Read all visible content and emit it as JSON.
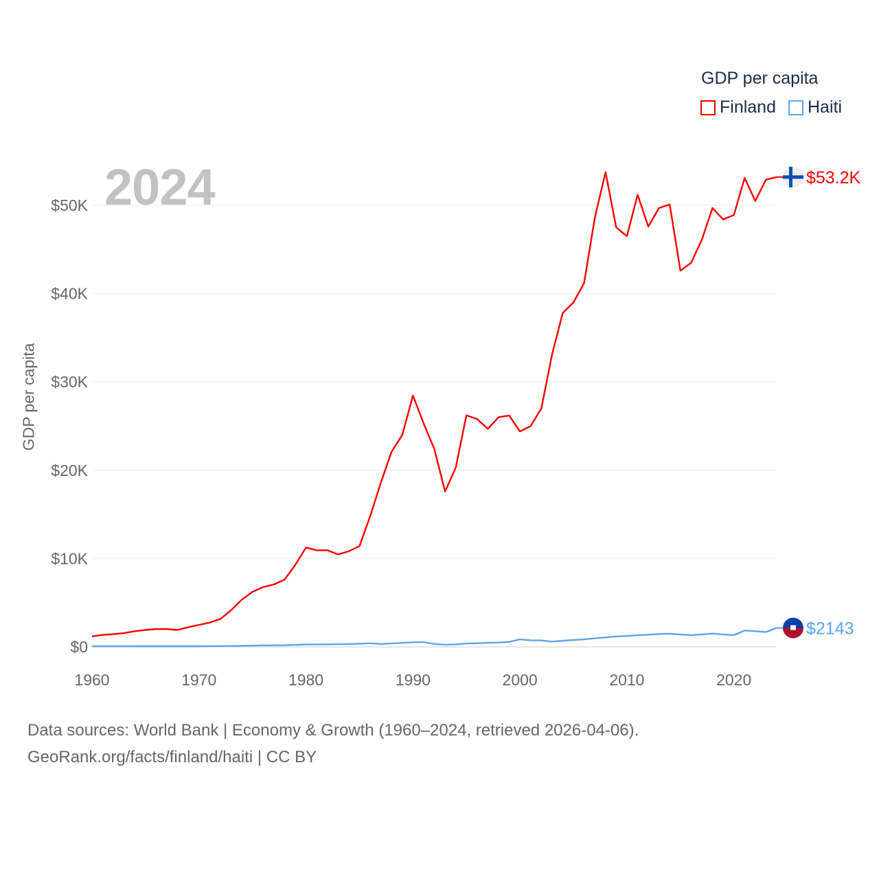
{
  "legend": {
    "title": "GDP per capita",
    "items": [
      {
        "label": "Finland",
        "color": "#ff0000"
      },
      {
        "label": "Haiti",
        "color": "#5ba4ee"
      }
    ]
  },
  "year_display": "2024",
  "footer": {
    "line1": "Data sources: World Bank | Economy & Growth (1960–2024, retrieved 2026-04-06).",
    "line2": "GeoRank.org/facts/finland/haiti | CC BY"
  },
  "chart_data": {
    "type": "line",
    "title": "",
    "xlabel": "",
    "ylabel": "GDP per capita",
    "xlim": [
      1960,
      2024
    ],
    "ylim": [
      0,
      55000
    ],
    "grid": true,
    "legend_position": "top-right",
    "x_ticks": [
      1960,
      1970,
      1980,
      1990,
      2000,
      2010,
      2020
    ],
    "x_tick_labels": [
      "1960",
      "1970",
      "1980",
      "1990",
      "2000",
      "2010",
      "2020"
    ],
    "y_ticks": [
      0,
      10000,
      20000,
      30000,
      40000,
      50000
    ],
    "y_tick_labels": [
      "$0",
      "$10K",
      "$20K",
      "$30K",
      "$40K",
      "$50K"
    ],
    "x_start": 1960,
    "series": [
      {
        "name": "Finland",
        "color": "#ff0000",
        "end_label": "$53.2K",
        "values": [
          1190,
          1350,
          1450,
          1560,
          1770,
          1920,
          2020,
          2020,
          1920,
          2230,
          2490,
          2750,
          3160,
          4150,
          5340,
          6240,
          6770,
          7080,
          7620,
          9280,
          11250,
          10940,
          10940,
          10470,
          10830,
          11410,
          14800,
          18600,
          22100,
          24000,
          28460,
          25300,
          22400,
          17600,
          20300,
          26230,
          25800,
          24700,
          26000,
          26200,
          24400,
          25000,
          27000,
          33100,
          37800,
          39000,
          41200,
          48600,
          53750,
          47500,
          46500,
          51200,
          47600,
          49700,
          50100,
          42600,
          43500,
          46100,
          49700,
          48400,
          48900,
          53100,
          50500,
          52900,
          53200
        ]
      },
      {
        "name": "Haiti",
        "color": "#5ba4ee",
        "end_label": "$2143",
        "values": [
          70,
          70,
          70,
          70,
          75,
          75,
          75,
          80,
          80,
          80,
          80,
          85,
          90,
          100,
          120,
          140,
          170,
          180,
          190,
          230,
          270,
          280,
          290,
          300,
          320,
          360,
          410,
          330,
          400,
          450,
          520,
          550,
          330,
          250,
          280,
          380,
          410,
          470,
          490,
          570,
          850,
          750,
          730,
          600,
          700,
          780,
          850,
          980,
          1070,
          1180,
          1230,
          1330,
          1380,
          1460,
          1490,
          1410,
          1330,
          1410,
          1510,
          1410,
          1330,
          1850,
          1770,
          1690,
          2143
        ]
      }
    ]
  }
}
